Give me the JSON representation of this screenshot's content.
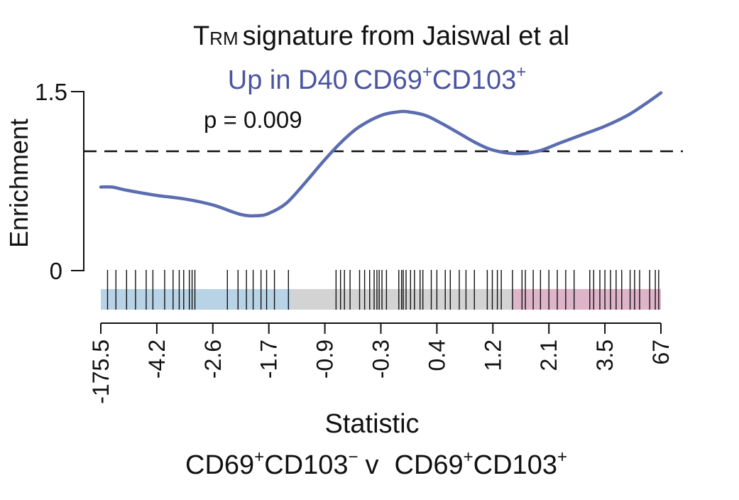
{
  "chart_data": {
    "type": "line",
    "title": {
      "main": "signature from Jaiswal et al",
      "main_t": "T",
      "main_sub": "RM",
      "subtitle_prefix": "Up in D40",
      "subtitle_group": "CD69",
      "subtitle_sup1": "+",
      "subtitle_marker": "CD103",
      "subtitle_sup2": "+"
    },
    "pvalue_text": "p = 0.009",
    "ylabel": "Enrichment",
    "ylim": [
      0,
      1.5
    ],
    "yticks": [
      "0",
      "1.5"
    ],
    "reference_line": 1.0,
    "xlabel": "Statistic",
    "comparison": {
      "left_group": "CD69",
      "left_sup1": "+",
      "left_marker": "CD103",
      "left_sup2": "−",
      "versus": "v",
      "right_group": "CD69",
      "right_sup1": "+",
      "right_marker": "CD103",
      "right_sup2": "+"
    },
    "xticks": [
      "-175.5",
      "-4.2",
      "-2.6",
      "-1.7",
      "-0.9",
      "-0.3",
      "0.4",
      "1.2",
      "2.1",
      "3.5",
      "67"
    ],
    "curve_color": "#5b6cb0",
    "series": [
      {
        "x": [
          0,
          0.02,
          0.05,
          0.1,
          0.15,
          0.2,
          0.25,
          0.28,
          0.3,
          0.33,
          0.36,
          0.4,
          0.43,
          0.46,
          0.5,
          0.53,
          0.55,
          0.58,
          0.61,
          0.64,
          0.67,
          0.7,
          0.74,
          0.78,
          0.82,
          0.86,
          0.9,
          0.94,
          0.97,
          1.0
        ],
        "values": [
          0.7,
          0.7,
          0.67,
          0.63,
          0.6,
          0.55,
          0.47,
          0.46,
          0.48,
          0.56,
          0.71,
          0.93,
          1.08,
          1.2,
          1.3,
          1.33,
          1.33,
          1.3,
          1.23,
          1.15,
          1.07,
          1.01,
          0.98,
          1.0,
          1.07,
          1.14,
          1.21,
          1.3,
          1.39,
          1.49
        ]
      }
    ],
    "bar_segments": [
      {
        "from": 0.0,
        "to": 0.34,
        "color": "#b8d3e6"
      },
      {
        "from": 0.34,
        "to": 0.735,
        "color": "#d3d3d3"
      },
      {
        "from": 0.735,
        "to": 1.0,
        "color": "#ddb4c8"
      }
    ],
    "barcode_positions": [
      0.012,
      0.027,
      0.046,
      0.062,
      0.081,
      0.093,
      0.114,
      0.129,
      0.14,
      0.148,
      0.158,
      0.163,
      0.168,
      0.226,
      0.245,
      0.26,
      0.272,
      0.286,
      0.296,
      0.31,
      0.335,
      0.42,
      0.428,
      0.435,
      0.445,
      0.462,
      0.471,
      0.48,
      0.488,
      0.493,
      0.497,
      0.502,
      0.51,
      0.532,
      0.537,
      0.54,
      0.545,
      0.553,
      0.56,
      0.57,
      0.575,
      0.59,
      0.6,
      0.615,
      0.624,
      0.64,
      0.652,
      0.667,
      0.69,
      0.699,
      0.708,
      0.715,
      0.735,
      0.752,
      0.758,
      0.772,
      0.785,
      0.8,
      0.815,
      0.83,
      0.845,
      0.873,
      0.88,
      0.891,
      0.9,
      0.91,
      0.92,
      0.93,
      0.945,
      0.953,
      0.962,
      0.98,
      0.99,
      0.996
    ]
  }
}
